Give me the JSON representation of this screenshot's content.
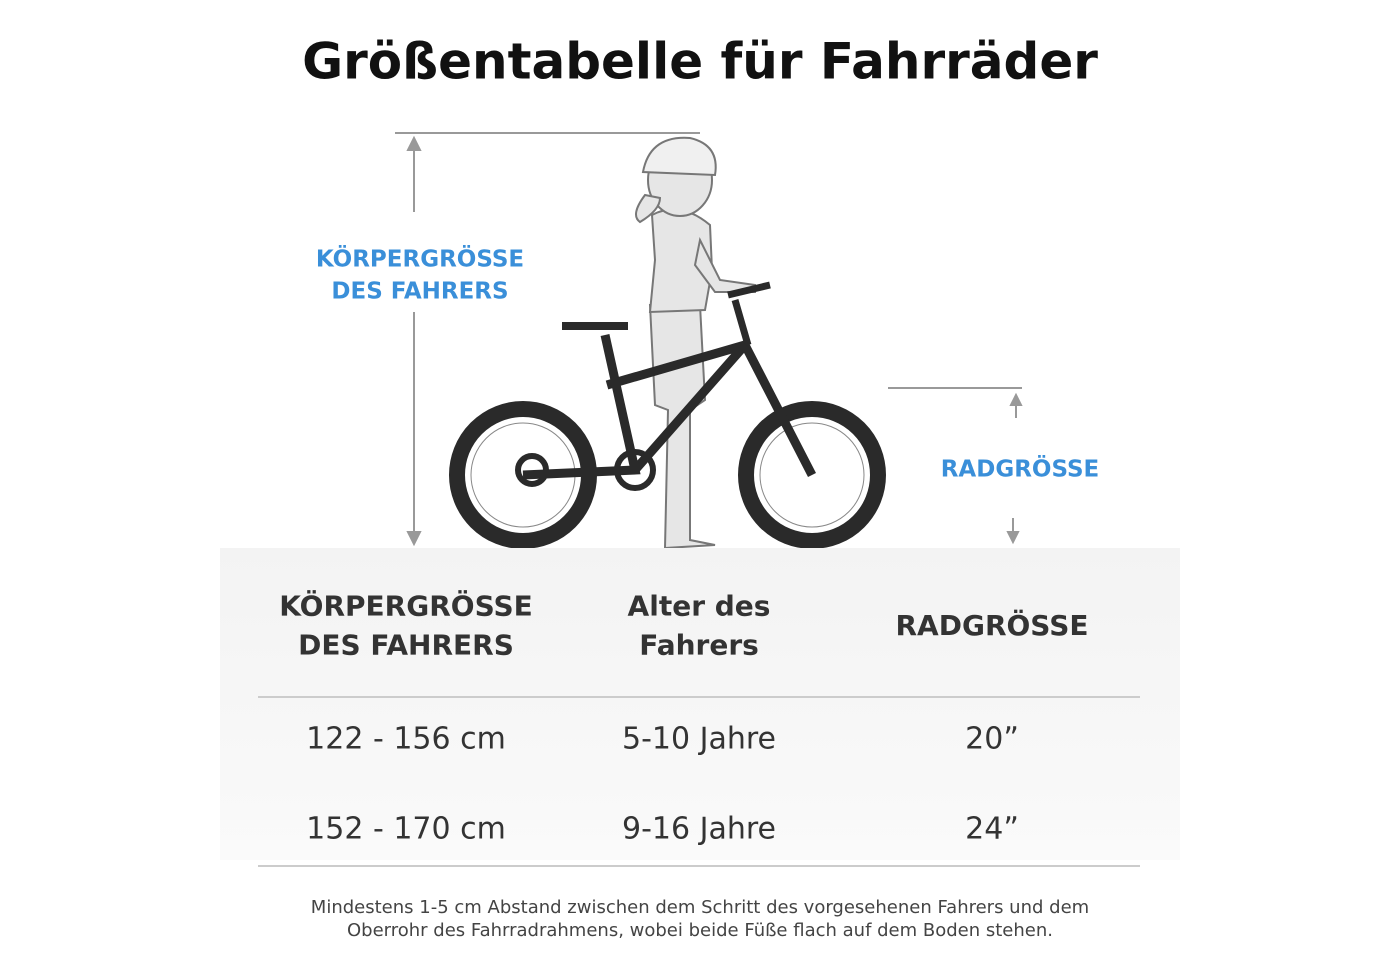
{
  "header": {
    "title": "Größentabelle für Fahrräder"
  },
  "illustration": {
    "body_height_label": [
      "KÖRPERGRÖSSE",
      "DES FAHRERS"
    ],
    "wheel_size_label": "RADGRÖSSE"
  },
  "table": {
    "headers": [
      [
        "KÖRPERGRÖSSE",
        "DES FAHRERS"
      ],
      [
        "Alter des",
        "Fahrers"
      ],
      [
        "RADGRÖSSE"
      ]
    ],
    "rows": [
      [
        "122 - 156 cm",
        "5-10 Jahre",
        "20”"
      ],
      [
        "152 - 170 cm",
        "9-16 Jahre",
        "24”"
      ]
    ]
  },
  "note": [
    "Mindestens 1-5 cm Abstand zwischen dem Schritt des vorgesehenen Fahrers und dem",
    "Oberrohr des Fahrradrahmens, wobei beide Füße flach auf dem Boden stehen."
  ]
}
